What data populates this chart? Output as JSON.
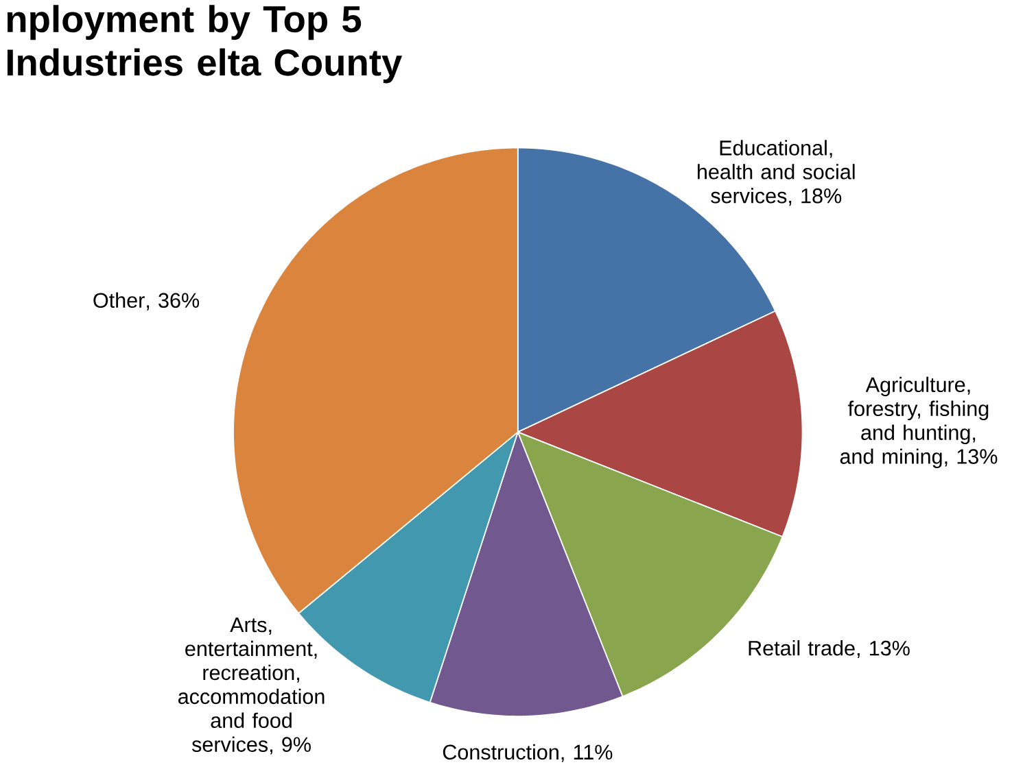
{
  "chart_data": {
    "type": "pie",
    "title": "nployment by Top 5 Industries elta County",
    "categories": [
      "Educational, health and social services",
      "Agriculture, forestry, fishing and hunting, and mining",
      "Retail trade",
      "Construction",
      "Arts, entertainment, recreation, accommodation and food services",
      "Other"
    ],
    "values": [
      18,
      13,
      13,
      11,
      9,
      36
    ],
    "value_labels": [
      ", 18%",
      ", 13%",
      ", 13%",
      ", 11%",
      ", 9%",
      ", 36%"
    ],
    "colors": [
      "#4572a7",
      "#aa4643",
      "#89a54e",
      "#71588f",
      "#4198af",
      "#db843d"
    ]
  }
}
